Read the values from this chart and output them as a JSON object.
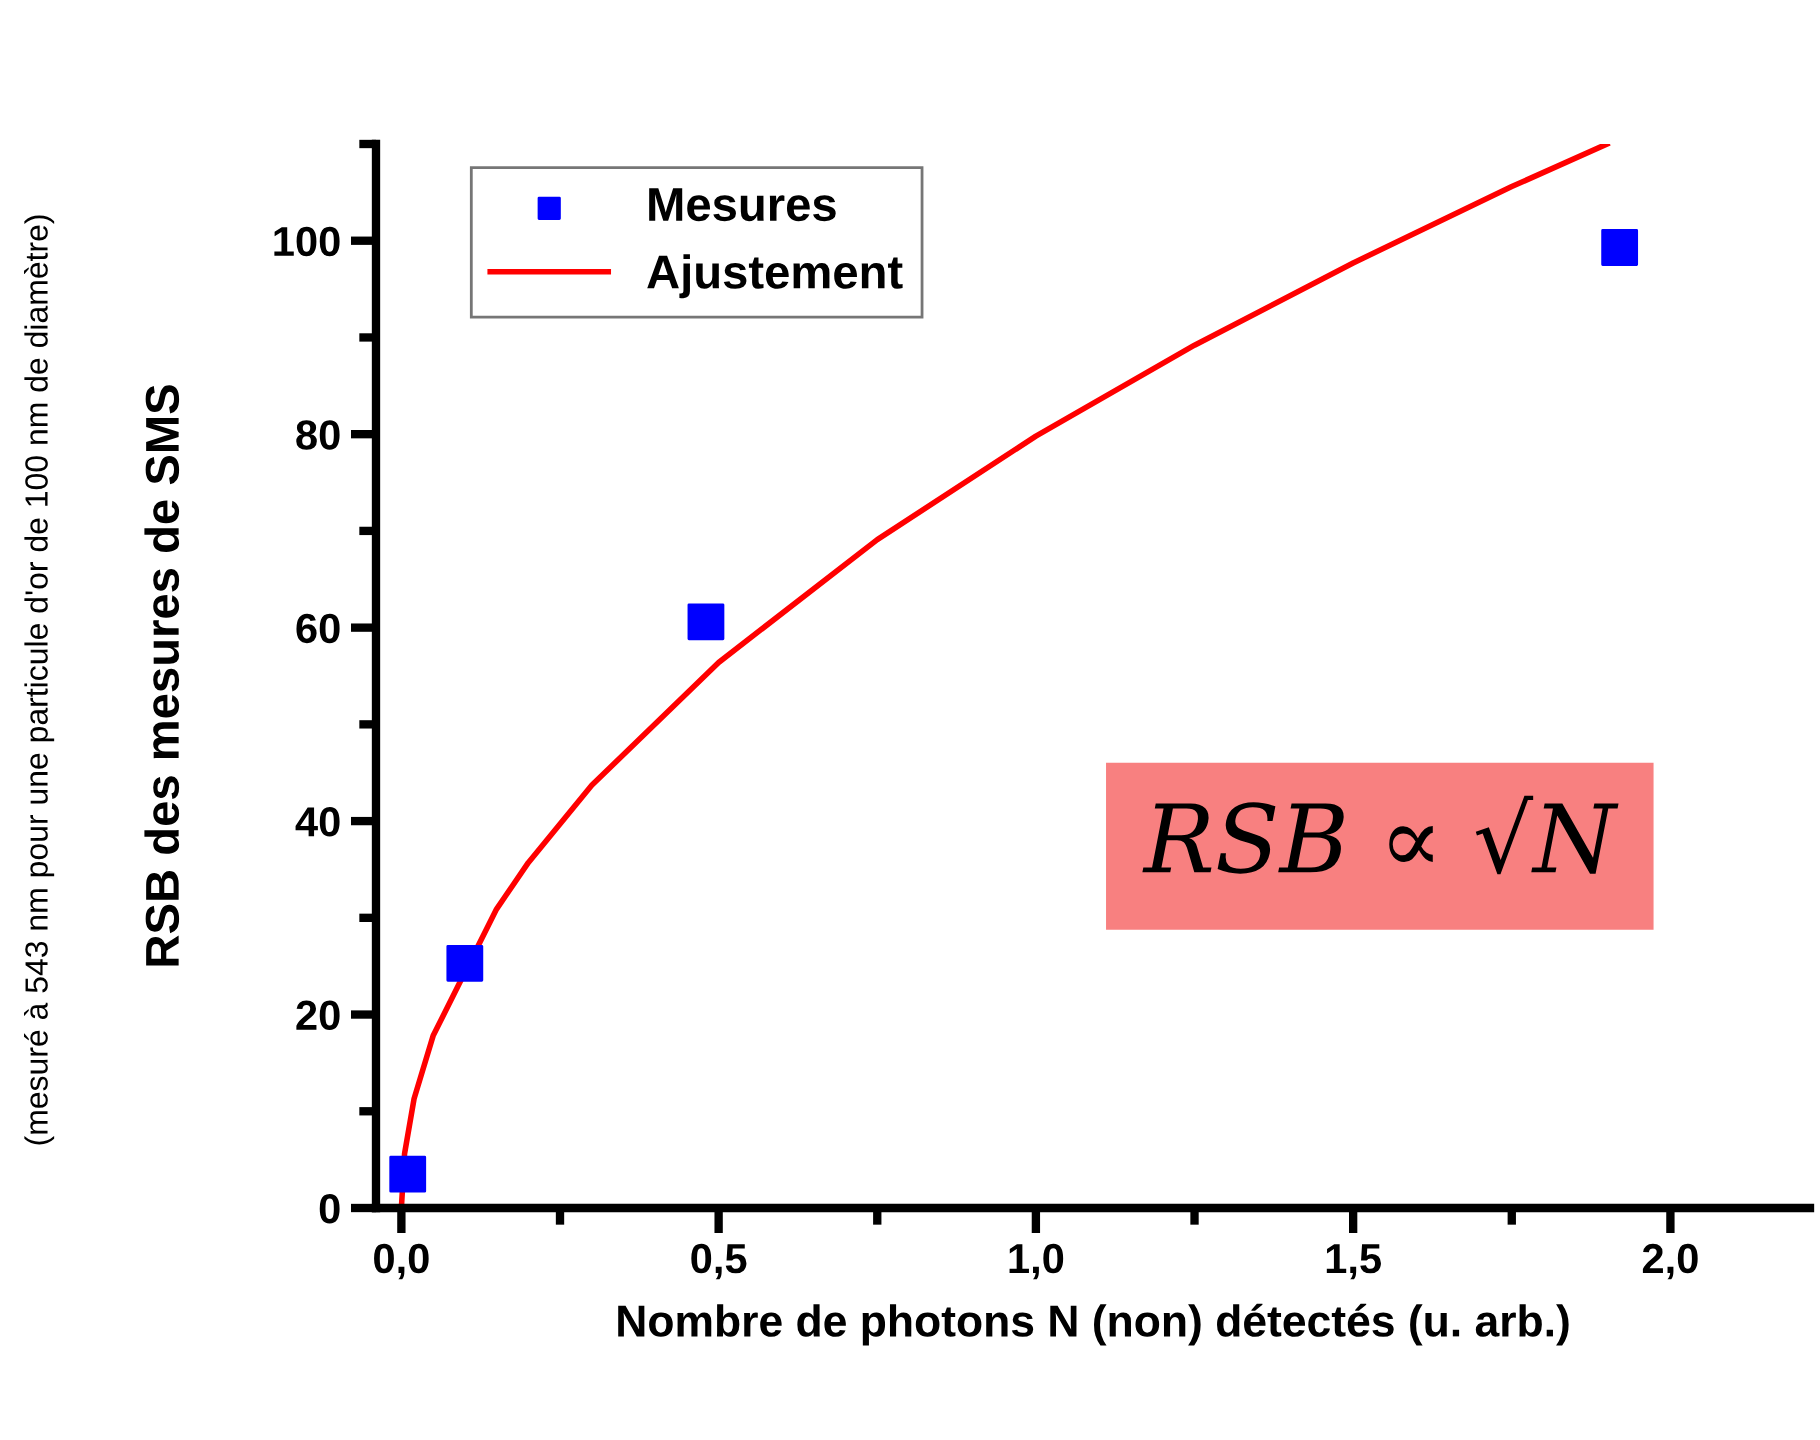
{
  "chart_data": {
    "type": "scatter",
    "xlabel": "Nombre de photons N (non) détectés (u. arb.)",
    "ylabel": "RSB des mesures de SMS",
    "xlim": [
      -0.04,
      2.22
    ],
    "xticks": [
      {
        "value": 0,
        "label": "0,0"
      },
      {
        "value": 0.5,
        "label": "0,5"
      },
      {
        "value": 1,
        "label": "1,0"
      },
      {
        "value": 1.5,
        "label": "1,5"
      },
      {
        "value": 2,
        "label": "2,0"
      }
    ],
    "ylim": [
      0,
      110
    ],
    "yticks": [
      0,
      20,
      40,
      60,
      80,
      100
    ],
    "grid": false,
    "legend": "top left",
    "series": [
      {
        "name": "Mesures",
        "marker": "square",
        "color": "#0000ff",
        "x": [
          0.01,
          0.1,
          0.48,
          1.92
        ],
        "values": [
          3.5,
          25.3,
          60.6,
          99.3
        ]
      },
      {
        "name": "Ajustement",
        "type": "line",
        "color": "#ff0000",
        "x": [
          0,
          0.005,
          0.02,
          0.05,
          0.15,
          0.2,
          0.3,
          0.5,
          0.75,
          1.0,
          1.25,
          1.5,
          1.75,
          1.9
        ],
        "values": [
          0,
          5.6,
          11.3,
          17.8,
          30.9,
          35.7,
          43.7,
          56.4,
          69.1,
          79.8,
          89.2,
          97.7,
          105.6,
          110
        ]
      }
    ],
    "annotations": [
      "(mesuré à 543 nm pour une particule d'or de 100 nm de diamètre)",
      "RSB ∝ √N"
    ]
  }
}
